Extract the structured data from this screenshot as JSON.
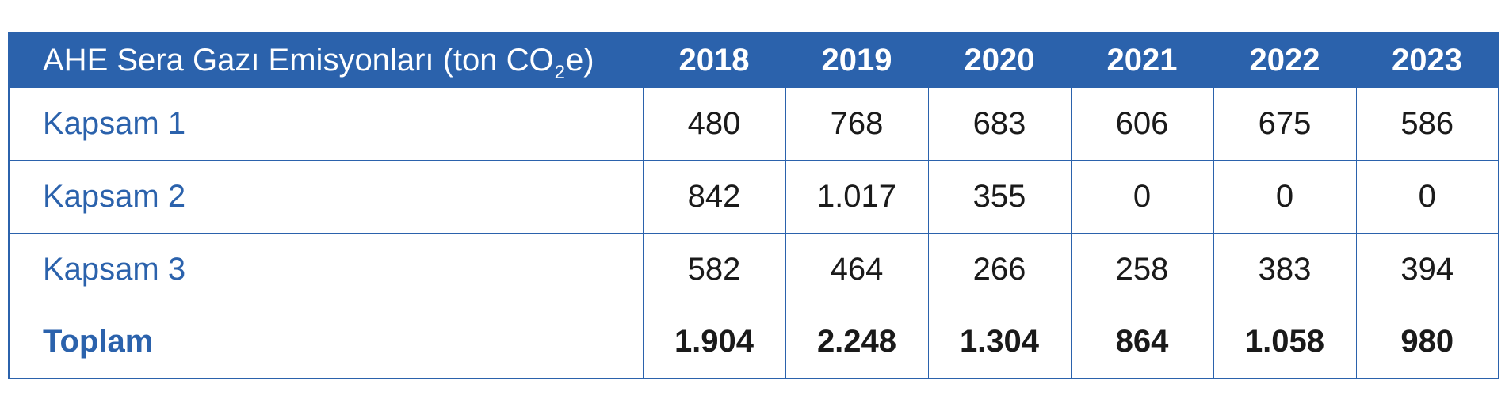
{
  "table": {
    "header": {
      "label_prefix": "AHE Sera Gazı Emisyonları (ton CO",
      "label_sub": "2",
      "label_suffix": "e)",
      "years": [
        "2018",
        "2019",
        "2020",
        "2021",
        "2022",
        "2023"
      ]
    },
    "rows": [
      {
        "label": "Kapsam 1",
        "values": [
          "480",
          "768",
          "683",
          "606",
          "675",
          "586"
        ]
      },
      {
        "label": "Kapsam 2",
        "values": [
          "842",
          "1.017",
          "355",
          "0",
          "0",
          "0"
        ]
      },
      {
        "label": "Kapsam 3",
        "values": [
          "582",
          "464",
          "266",
          "258",
          "383",
          "394"
        ]
      },
      {
        "label": "Toplam",
        "values": [
          "1.904",
          "2.248",
          "1.304",
          "864",
          "1.058",
          "980"
        ]
      }
    ]
  },
  "colors": {
    "accent": "#2b62ac",
    "header_text": "#ffffff",
    "value_text": "#1a1a1a"
  }
}
